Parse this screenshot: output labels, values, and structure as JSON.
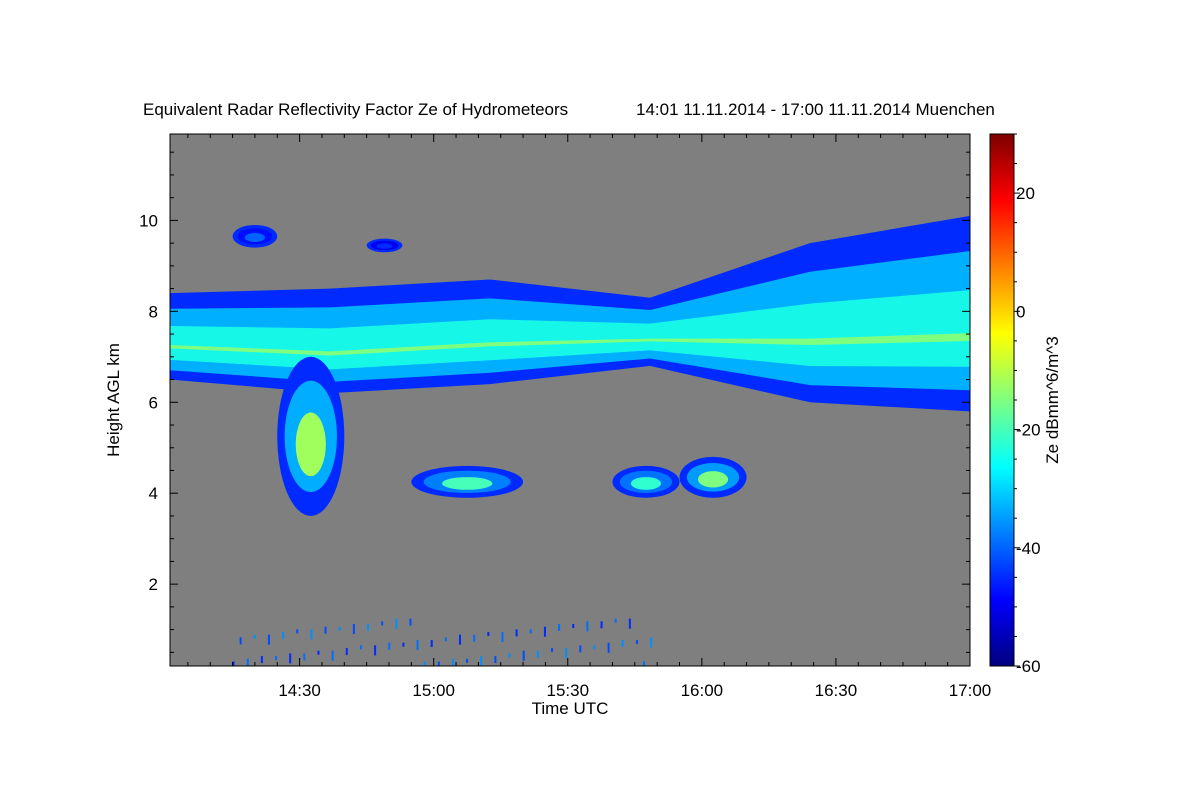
{
  "chart_data": {
    "type": "heatmap",
    "title": "Equivalent Radar Reflectivity Factor Ze of Hydrometeors",
    "subtitle": "14:01 11.11.2014 - 17:00 11.11.2014 Muenchen",
    "xlabel": "Time UTC",
    "ylabel": "Height AGL km",
    "xlim": [
      "14:01",
      "17:00"
    ],
    "x_ticks": [
      "14:30",
      "15:00",
      "15:30",
      "16:00",
      "16:30",
      "17:00"
    ],
    "ylim": [
      0.2,
      11.9
    ],
    "y_ticks": [
      2,
      4,
      6,
      8,
      10
    ],
    "colorbar": {
      "label": "Ze dBmm^6/m^3",
      "range": [
        -60,
        30
      ],
      "ticks": [
        -60,
        -40,
        -20,
        0,
        20
      ]
    },
    "background_color": "#7f7f7f",
    "colormap": [
      "#00007f",
      "#0000ff",
      "#007fff",
      "#00ffff",
      "#7fff7f",
      "#ffff00",
      "#ff7f00",
      "#ff0000",
      "#7f0000"
    ],
    "regions": [
      {
        "name": "main cloud layer",
        "t_start": "14:01",
        "t_end": "17:00",
        "base_km": [
          6.5,
          6.2,
          6.4,
          6.8,
          6.0,
          5.8
        ],
        "top_km": [
          8.4,
          8.5,
          8.7,
          8.3,
          9.5,
          10.1
        ],
        "peak_ze_dbz": -14
      },
      {
        "name": "fall streak",
        "t_start": "14:25",
        "t_end": "14:40",
        "base_km": 3.5,
        "top_km": 7.0,
        "peak_ze_dbz": -12
      },
      {
        "name": "mid-level layer",
        "t_start": "14:55",
        "t_end": "15:20",
        "base_km": 3.9,
        "top_km": 4.6,
        "peak_ze_dbz": -20
      },
      {
        "name": "mid-level layer",
        "t_start": "15:40",
        "t_end": "15:55",
        "base_km": 3.9,
        "top_km": 4.6,
        "peak_ze_dbz": -22
      },
      {
        "name": "mid-level layer",
        "t_start": "15:55",
        "t_end": "16:10",
        "base_km": 3.9,
        "top_km": 4.8,
        "peak_ze_dbz": -15
      },
      {
        "name": "cirrus patch",
        "t_start": "14:15",
        "t_end": "14:25",
        "base_km": 9.4,
        "top_km": 9.9,
        "peak_ze_dbz": -40
      },
      {
        "name": "cirrus patch",
        "t_start": "14:45",
        "t_end": "14:53",
        "base_km": 9.3,
        "top_km": 9.6,
        "peak_ze_dbz": -45
      },
      {
        "name": "boundary layer clutter",
        "t_start": "14:15",
        "t_end": "15:50",
        "base_km": 0.3,
        "top_km": 1.3,
        "peak_ze_dbz": -40
      }
    ]
  }
}
